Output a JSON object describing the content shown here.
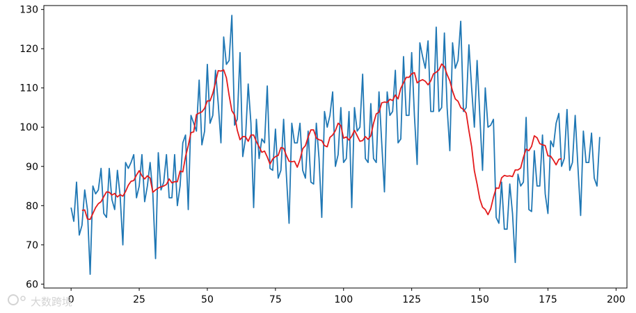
{
  "chart_data": {
    "type": "line",
    "title": "",
    "xlabel": "",
    "ylabel": "",
    "xlim": [
      -10,
      204
    ],
    "ylim": [
      59,
      131
    ],
    "xticks": [
      0,
      25,
      50,
      75,
      100,
      125,
      150,
      175,
      200
    ],
    "yticks": [
      60,
      70,
      80,
      90,
      100,
      110,
      120,
      130
    ],
    "xtick_labels": [
      "0",
      "25",
      "50",
      "75",
      "100",
      "125",
      "150",
      "175",
      "200"
    ],
    "ytick_labels": [
      "60",
      "70",
      "80",
      "90",
      "100",
      "110",
      "120",
      "130"
    ],
    "grid": false,
    "legend": "none",
    "series": [
      {
        "color": "#1f77b4",
        "x_start": 0,
        "x_step": 1,
        "values": [
          79.5,
          76,
          86,
          72.5,
          75,
          84,
          79,
          62.5,
          85,
          83,
          84,
          89.5,
          78,
          77,
          89.5,
          81.5,
          79,
          89,
          82.5,
          70,
          91,
          89.5,
          91,
          93,
          82,
          85,
          93,
          81,
          85,
          91,
          83,
          66.5,
          93.5,
          84,
          86,
          93,
          82,
          82,
          93,
          80,
          85,
          96,
          98,
          79,
          103,
          101,
          99,
          112,
          95.5,
          99,
          116,
          101,
          103,
          114.5,
          106,
          96,
          123,
          116,
          117,
          128.5,
          100.5,
          102,
          119,
          92.5,
          97,
          111,
          101,
          79.5,
          102,
          92,
          97,
          96,
          110.5,
          89.5,
          89,
          99.5,
          87,
          89,
          102,
          88,
          75.5,
          101,
          96,
          96,
          101,
          89,
          87,
          99,
          86,
          85.5,
          101,
          92,
          77,
          104,
          100,
          103,
          109,
          90,
          93,
          105,
          91,
          92,
          104,
          79.5,
          105,
          99,
          100,
          113.5,
          92,
          91,
          106,
          92,
          91,
          109,
          96,
          83.5,
          109,
          103,
          104,
          114.5,
          96,
          97,
          118,
          103,
          103,
          119,
          103,
          90.5,
          121.5,
          118,
          115,
          122,
          104,
          104,
          125.5,
          104,
          105,
          124,
          105,
          94,
          121.5,
          115,
          117,
          127,
          104,
          105,
          121,
          110,
          100,
          117,
          103,
          89,
          110,
          100,
          100.5,
          102,
          77,
          75.5,
          86,
          74,
          74,
          85.5,
          78,
          65.5,
          88,
          85,
          86,
          102.5,
          79,
          78.5,
          94,
          85,
          85,
          98,
          83,
          78,
          96.5,
          95,
          101,
          103.5,
          90,
          92,
          104.5,
          89,
          91,
          103,
          90,
          77.5,
          99,
          91,
          91,
          98.5,
          87,
          85,
          97.5
        ]
      },
      {
        "color": "#e31a1c",
        "x_start": 4,
        "x_step": 1,
        "values": [
          78.8,
          78.9,
          76.6,
          76.5,
          78.0,
          79.5,
          80.5,
          81.0,
          82.3,
          83.5,
          83.4,
          82.7,
          83.1,
          82.2,
          82.8,
          82.4,
          83.6,
          85.2,
          86.2,
          86.4,
          87.8,
          88.9,
          87.6,
          86.8,
          87.6,
          87.0,
          83.4,
          84.0,
          84.5,
          84.8,
          85.0,
          85.4,
          86.8,
          85.8,
          86.1,
          86.1,
          88.8,
          88.6,
          92.5,
          95.3,
          98.6,
          98.8,
          103.2,
          103.6,
          103.9,
          104.8,
          106.7,
          106.7,
          108.6,
          111.4,
          114.4,
          114.3,
          114.6,
          112.6,
          108.1,
          104.2,
          103.1,
          99.2,
          96.8,
          97.6,
          97.6,
          96.4,
          98.0,
          98.0,
          96.3,
          95.0,
          93.6,
          93.9,
          92.4,
          90.6,
          91.9,
          92.5,
          92.8,
          94.8,
          94.6,
          92.8,
          91.3,
          91.2,
          91.3,
          89.8,
          91.7,
          94.5,
          95.3,
          97.5,
          99.3,
          99.3,
          97.2,
          96.8,
          96.6,
          95.3,
          95.0,
          97.4,
          98.0,
          99.1,
          101.0,
          100.4,
          97.2,
          97.5,
          96.7,
          97.7,
          99.2,
          97.8,
          96.4,
          96.6,
          97.6,
          96.9,
          97.8,
          101.0,
          103.4,
          103.8,
          106.2,
          106.4,
          106.3,
          107.1,
          106.8,
          108.2,
          107.2,
          109.9,
          111.3,
          112.7,
          112.7,
          113.6,
          113.9,
          111.3,
          111.8,
          112.1,
          111.7,
          110.8,
          111.8,
          113.6,
          114.0,
          114.6,
          116.1,
          115.4,
          113.4,
          111.8,
          109.2,
          107.2,
          106.6,
          105.0,
          104.5,
          103.6,
          99.1,
          95.0,
          88.9,
          85.5,
          81.7,
          79.6,
          79.0,
          77.7,
          79.2,
          82.1,
          84.5,
          84.4,
          87.1,
          87.7,
          87.5,
          87.6,
          87.4,
          89.1,
          89.1,
          89.6,
          92.3,
          94.4,
          94.0,
          95.1,
          97.8,
          97.3,
          95.8,
          95.5,
          95.3,
          92.7,
          92.6,
          91.6,
          90.4,
          91.8,
          92.0
        ]
      }
    ]
  },
  "watermark": {
    "text": "大数跨境"
  }
}
